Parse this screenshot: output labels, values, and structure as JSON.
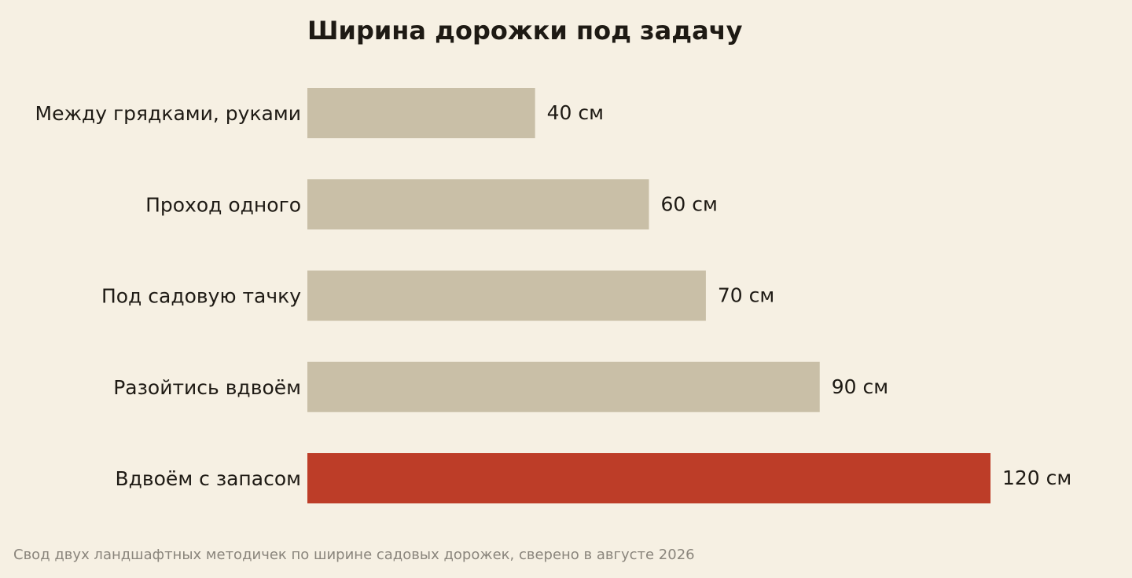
{
  "chart_data": {
    "type": "bar",
    "orientation": "horizontal",
    "title": "Ширина дорожки под задачу",
    "xlabel": "",
    "ylabel": "",
    "unit": "см",
    "categories": [
      "Между грядками, руками",
      "Проход одного",
      "Под садовую тачку",
      "Разойтись вдвоём",
      "Вдвоём с запасом"
    ],
    "values": [
      40,
      60,
      70,
      90,
      120
    ],
    "value_labels": [
      "40 см",
      "60 см",
      "70 см",
      "90 см",
      "120 см"
    ],
    "highlight_index": 4,
    "xlim": [
      0,
      120
    ],
    "grid": false,
    "legend": "none"
  },
  "colors": {
    "background": "#f6f0e3",
    "bar": "#c9bfa7",
    "highlight_bar": "#bd3d28",
    "text": "#1e1a14",
    "footnote": "#8a857c"
  },
  "footnote": "Свод двух ландшафтных методичек по ширине садовых дорожек, сверено в августе 2026"
}
